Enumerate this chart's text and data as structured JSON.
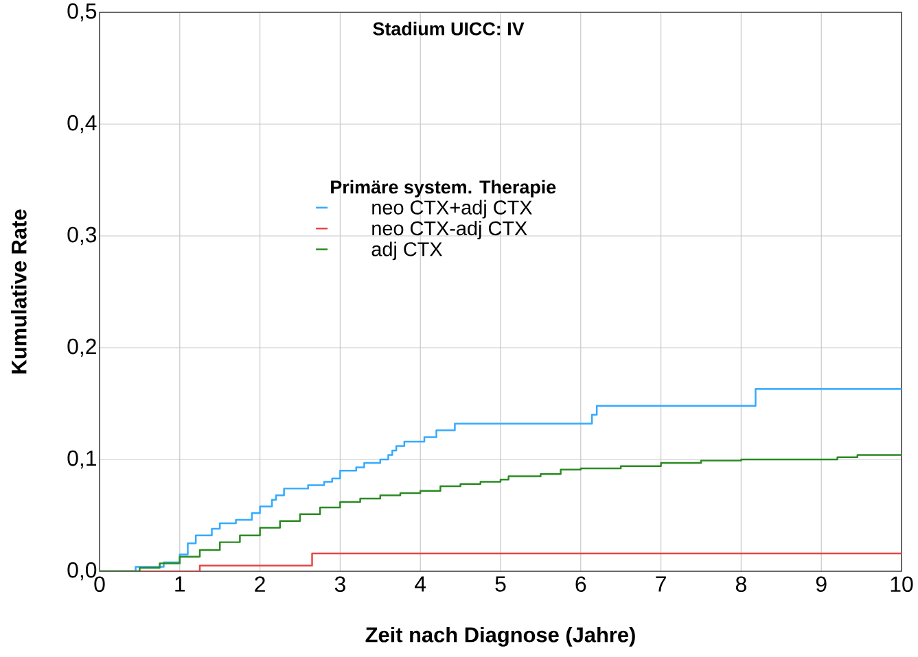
{
  "chart_data": {
    "type": "step",
    "title": "Stadium UICC: IV",
    "xlabel": "Zeit nach Diagnose (Jahre)",
    "ylabel": "Kumulative Rate",
    "legend_title": "Primäre system. Therapie",
    "xlim": [
      0,
      10
    ],
    "ylim": [
      0,
      0.5
    ],
    "xticks": [
      0,
      1,
      2,
      3,
      4,
      5,
      6,
      7,
      8,
      9,
      10
    ],
    "yticks": [
      {
        "value": 0,
        "label": "0,0"
      },
      {
        "value": 0.1,
        "label": "0,1"
      },
      {
        "value": 0.2,
        "label": "0,2"
      },
      {
        "value": 0.3,
        "label": "0,3"
      },
      {
        "value": 0.4,
        "label": "0,4"
      },
      {
        "value": 0.5,
        "label": "0,5"
      }
    ],
    "grid": true,
    "legend": "top",
    "series": [
      {
        "name": "neo CTX+adj CTX",
        "color": "#33aaff",
        "x": [
          0,
          0.45,
          0.8,
          1.0,
          1.1,
          1.2,
          1.4,
          1.5,
          1.7,
          1.9,
          2.0,
          2.15,
          2.2,
          2.3,
          2.6,
          2.8,
          2.9,
          3.0,
          3.2,
          3.3,
          3.5,
          3.6,
          3.65,
          3.7,
          3.8,
          4.05,
          4.2,
          4.43,
          6.14,
          6.2,
          8.18,
          10
        ],
        "values": [
          0,
          0.004,
          0.008,
          0.015,
          0.025,
          0.032,
          0.038,
          0.043,
          0.046,
          0.052,
          0.058,
          0.064,
          0.068,
          0.074,
          0.077,
          0.08,
          0.083,
          0.09,
          0.093,
          0.097,
          0.1,
          0.104,
          0.108,
          0.112,
          0.116,
          0.12,
          0.126,
          0.132,
          0.14,
          0.148,
          0.163,
          0.163
        ]
      },
      {
        "name": "neo CTX-adj CTX",
        "color": "#e84545",
        "x": [
          0,
          1.25,
          2.65,
          10
        ],
        "values": [
          0,
          0.005,
          0.016,
          0.016
        ]
      },
      {
        "name": "adj CTX",
        "color": "#2a8a22",
        "x": [
          0,
          0.5,
          0.75,
          1.0,
          1.25,
          1.5,
          1.75,
          2.0,
          2.25,
          2.5,
          2.75,
          3.0,
          3.25,
          3.5,
          3.75,
          4.0,
          4.25,
          4.5,
          4.75,
          5.0,
          5.1,
          5.5,
          5.75,
          6.0,
          6.5,
          7.0,
          7.5,
          8.0,
          8.5,
          9.0,
          9.2,
          9.45,
          10
        ],
        "values": [
          0,
          0.003,
          0.007,
          0.013,
          0.019,
          0.026,
          0.032,
          0.039,
          0.045,
          0.051,
          0.057,
          0.062,
          0.065,
          0.068,
          0.07,
          0.072,
          0.076,
          0.078,
          0.08,
          0.082,
          0.085,
          0.087,
          0.091,
          0.092,
          0.094,
          0.097,
          0.099,
          0.1,
          0.1,
          0.1,
          0.102,
          0.104,
          0.104
        ]
      }
    ]
  }
}
